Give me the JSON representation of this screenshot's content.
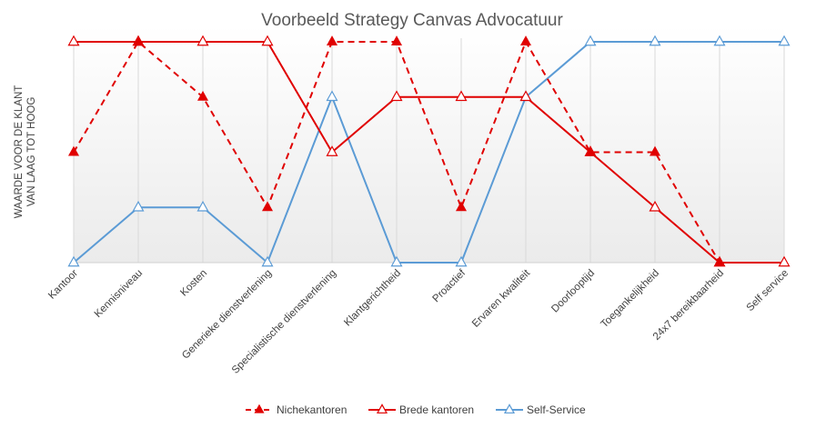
{
  "chart_data": {
    "type": "line",
    "title": "Voorbeeld Strategy Canvas Advocatuur",
    "ylabel_line1": "WAARDE VOOR DE KLANT",
    "ylabel_line2": "VAN LAAG TOT HOOG",
    "xlabel": "",
    "ylim": [
      0,
      4
    ],
    "grid": "vertical",
    "legend_position": "bottom",
    "categories": [
      "Kantoor",
      "Kennisniveau",
      "Kosten",
      "Generieke dienstverlening",
      "Specialistische dienstverlening",
      "Klantgerichtheid",
      "Proactief",
      "Ervaren kwaliteit",
      "Doorlooptijd",
      "Toegankelijkheid",
      "24x7 bereikbaarheid",
      "Self service"
    ],
    "series": [
      {
        "name": "Nichekantoren",
        "color": "#e00000",
        "dashed": true,
        "marker": "triangle-filled",
        "values": [
          2,
          4,
          3,
          1,
          4,
          4,
          1,
          4,
          2,
          2,
          0,
          null
        ]
      },
      {
        "name": "Brede kantoren",
        "color": "#e00000",
        "dashed": false,
        "marker": "triangle-open",
        "values": [
          4,
          4,
          4,
          4,
          2,
          3,
          3,
          3,
          2,
          1,
          0,
          0
        ]
      },
      {
        "name": "Self-Service",
        "color": "#5b9bd5",
        "dashed": false,
        "marker": "triangle-open",
        "values": [
          0,
          1,
          1,
          0,
          3,
          0,
          0,
          3,
          4,
          4,
          4,
          4
        ]
      }
    ]
  }
}
